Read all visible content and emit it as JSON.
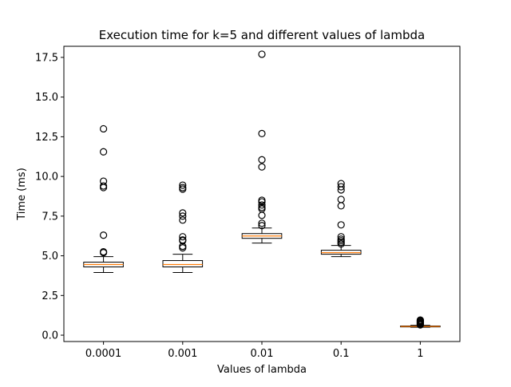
{
  "chart_data": {
    "type": "box",
    "title": "Execution time for k=5 and different values of lambda",
    "xlabel": "Values of lambda",
    "ylabel": "Time (ms)",
    "categories": [
      "0.0001",
      "0.001",
      "0.01",
      "0.1",
      "1"
    ],
    "ylim": [
      -0.4,
      18.2
    ],
    "yticks": [
      0.0,
      2.5,
      5.0,
      7.5,
      10.0,
      12.5,
      15.0,
      17.5
    ],
    "ytick_labels": [
      "0.0",
      "2.5",
      "5.0",
      "7.5",
      "10.0",
      "12.5",
      "15.0",
      "17.5"
    ],
    "grid": false,
    "boxes": [
      {
        "category": "0.0001",
        "whisker_low": 3.95,
        "q1": 4.3,
        "median": 4.45,
        "q3": 4.6,
        "whisker_high": 4.95,
        "outliers": [
          13.0,
          11.55,
          9.7,
          9.4,
          9.3,
          6.3,
          5.25,
          5.2
        ]
      },
      {
        "category": "0.001",
        "whisker_low": 3.95,
        "q1": 4.3,
        "median": 4.45,
        "q3": 4.7,
        "whisker_high": 5.1,
        "outliers": [
          9.45,
          9.3,
          9.2,
          7.7,
          7.5,
          7.25,
          6.2,
          6.0,
          5.95,
          5.6,
          5.5
        ]
      },
      {
        "category": "0.01",
        "whisker_low": 5.8,
        "q1": 6.1,
        "median": 6.25,
        "q3": 6.4,
        "whisker_high": 6.75,
        "outliers": [
          17.7,
          12.7,
          11.05,
          10.6,
          8.5,
          8.4,
          8.2,
          8.05,
          7.95,
          7.55,
          7.05,
          6.9
        ]
      },
      {
        "category": "0.1",
        "whisker_low": 4.95,
        "q1": 5.1,
        "median": 5.2,
        "q3": 5.35,
        "whisker_high": 5.65,
        "outliers": [
          9.55,
          9.35,
          9.15,
          8.55,
          8.15,
          6.95,
          6.2,
          6.05,
          5.95,
          5.85,
          5.75
        ]
      },
      {
        "category": "1",
        "whisker_low": 0.5,
        "q1": 0.52,
        "median": 0.55,
        "q3": 0.58,
        "whisker_high": 0.62,
        "outliers": [
          0.95,
          0.9,
          0.85,
          0.8,
          0.75,
          0.7,
          0.65
        ]
      }
    ],
    "colors": {
      "box_edge": "#000000",
      "median": "#ff7f0e",
      "outlier_edge": "#000000",
      "outlier_fill": "none"
    }
  }
}
